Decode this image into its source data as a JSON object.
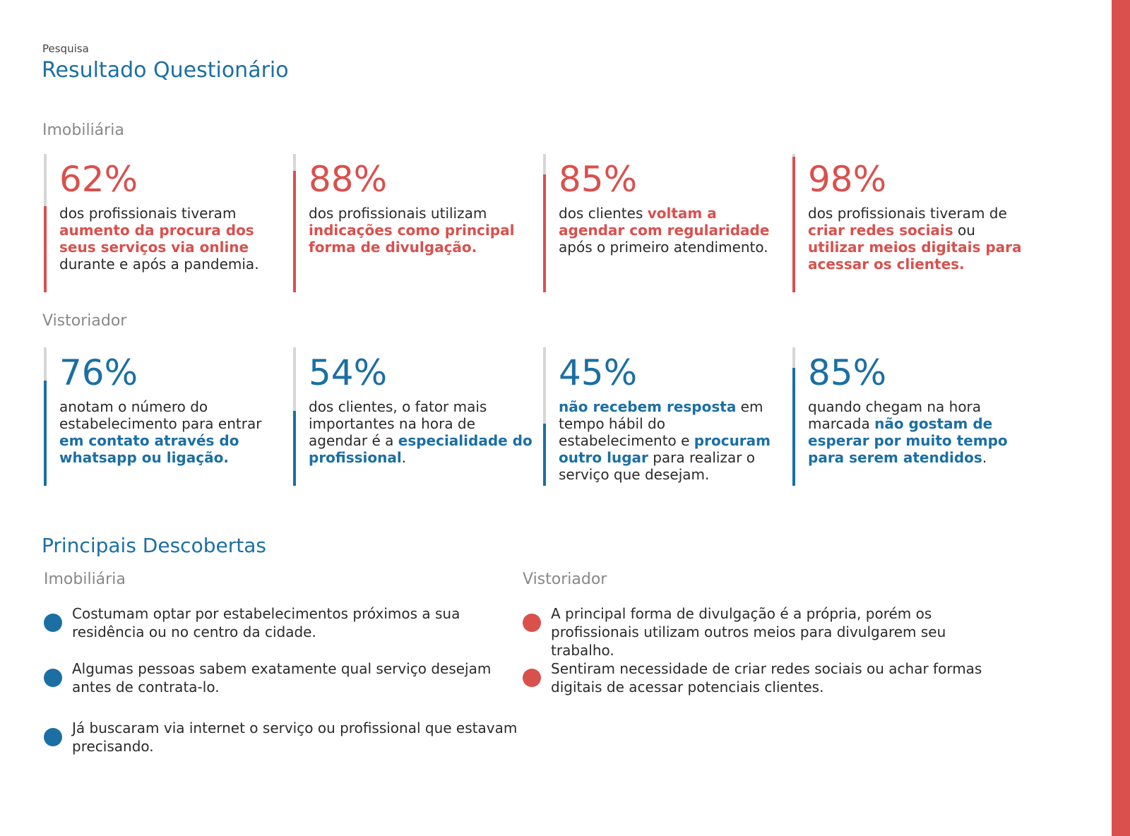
{
  "header": {
    "eyebrow": "Pesquisa",
    "title": "Resultado Questionário"
  },
  "sections": [
    {
      "label": "Imobiliária",
      "theme": "red",
      "stats": [
        {
          "value": "62%",
          "level": 62,
          "text": [
            {
              "t": "dos profissionais tiveram ",
              "hl": false
            },
            {
              "t": "aumento da procura dos seus serviços via online",
              "hl": true
            },
            {
              "t": " durante e após a pandemia.",
              "hl": false
            }
          ]
        },
        {
          "value": "88%",
          "level": 88,
          "text": [
            {
              "t": "dos profissionais utilizam ",
              "hl": false
            },
            {
              "t": "indicações como principal forma de divulgação.",
              "hl": true
            }
          ]
        },
        {
          "value": "85%",
          "level": 85,
          "text": [
            {
              "t": "dos clientes ",
              "hl": false
            },
            {
              "t": "voltam a agendar com regularidade",
              "hl": true
            },
            {
              "t": " após o primeiro atendimento.",
              "hl": false
            }
          ]
        },
        {
          "value": "98%",
          "level": 98,
          "text": [
            {
              "t": "dos profissionais tiveram de ",
              "hl": false
            },
            {
              "t": "criar redes sociais",
              "hl": true
            },
            {
              "t": " ou ",
              "hl": false
            },
            {
              "t": "utilizar meios digitais para acessar os clientes.",
              "hl": true
            }
          ]
        }
      ]
    },
    {
      "label": "Vistoriador",
      "theme": "blue",
      "stats": [
        {
          "value": "76%",
          "level": 76,
          "text": [
            {
              "t": "anotam o número do estabelecimento para entrar ",
              "hl": false
            },
            {
              "t": "em contato através do whatsapp ou ligação.",
              "hl": true
            }
          ]
        },
        {
          "value": "54%",
          "level": 54,
          "text": [
            {
              "t": "dos clientes, o fator mais importantes na hora de agendar é a ",
              "hl": false
            },
            {
              "t": "especialidade do profissional",
              "hl": true
            },
            {
              "t": ".",
              "hl": false
            }
          ]
        },
        {
          "value": "45%",
          "level": 45,
          "text": [
            {
              "t": "não recebem resposta",
              "hl": true
            },
            {
              "t": " em tempo hábil do estabelecimento e ",
              "hl": false
            },
            {
              "t": "procuram outro lugar",
              "hl": true
            },
            {
              "t": " para realizar o serviço que desejam.",
              "hl": false
            }
          ]
        },
        {
          "value": "85%",
          "level": 85,
          "text": [
            {
              "t": "quando chegam na hora marcada ",
              "hl": false
            },
            {
              "t": "não gostam de esperar por muito tempo para serem atendidos",
              "hl": true
            },
            {
              "t": ".",
              "hl": false
            }
          ]
        }
      ]
    }
  ],
  "discoveries": {
    "title": "Principais Descobertas",
    "columns": [
      {
        "label": "Imobiliária",
        "items": [
          "Costumam optar por estabelecimentos próximos a sua residência ou no centro da cidade.",
          "Algumas pessoas sabem exatamente qual serviço desejam antes de contrata-lo.",
          "Já buscaram via internet o serviço ou profissional que estavam precisando."
        ]
      },
      {
        "label": "Vistoriador",
        "items": [
          "A principal forma de divulgação é a própria, porém os profissionais utilizam outros meios para divulgarem seu trabalho.",
          "Sentiram necessidade de criar redes sociais ou achar formas digitais de acessar potenciais clientes."
        ]
      }
    ]
  },
  "colors": {
    "red": "#d9504d",
    "blue": "#1b6fa3",
    "muted": "#888888",
    "track": "#d6d6d6"
  }
}
